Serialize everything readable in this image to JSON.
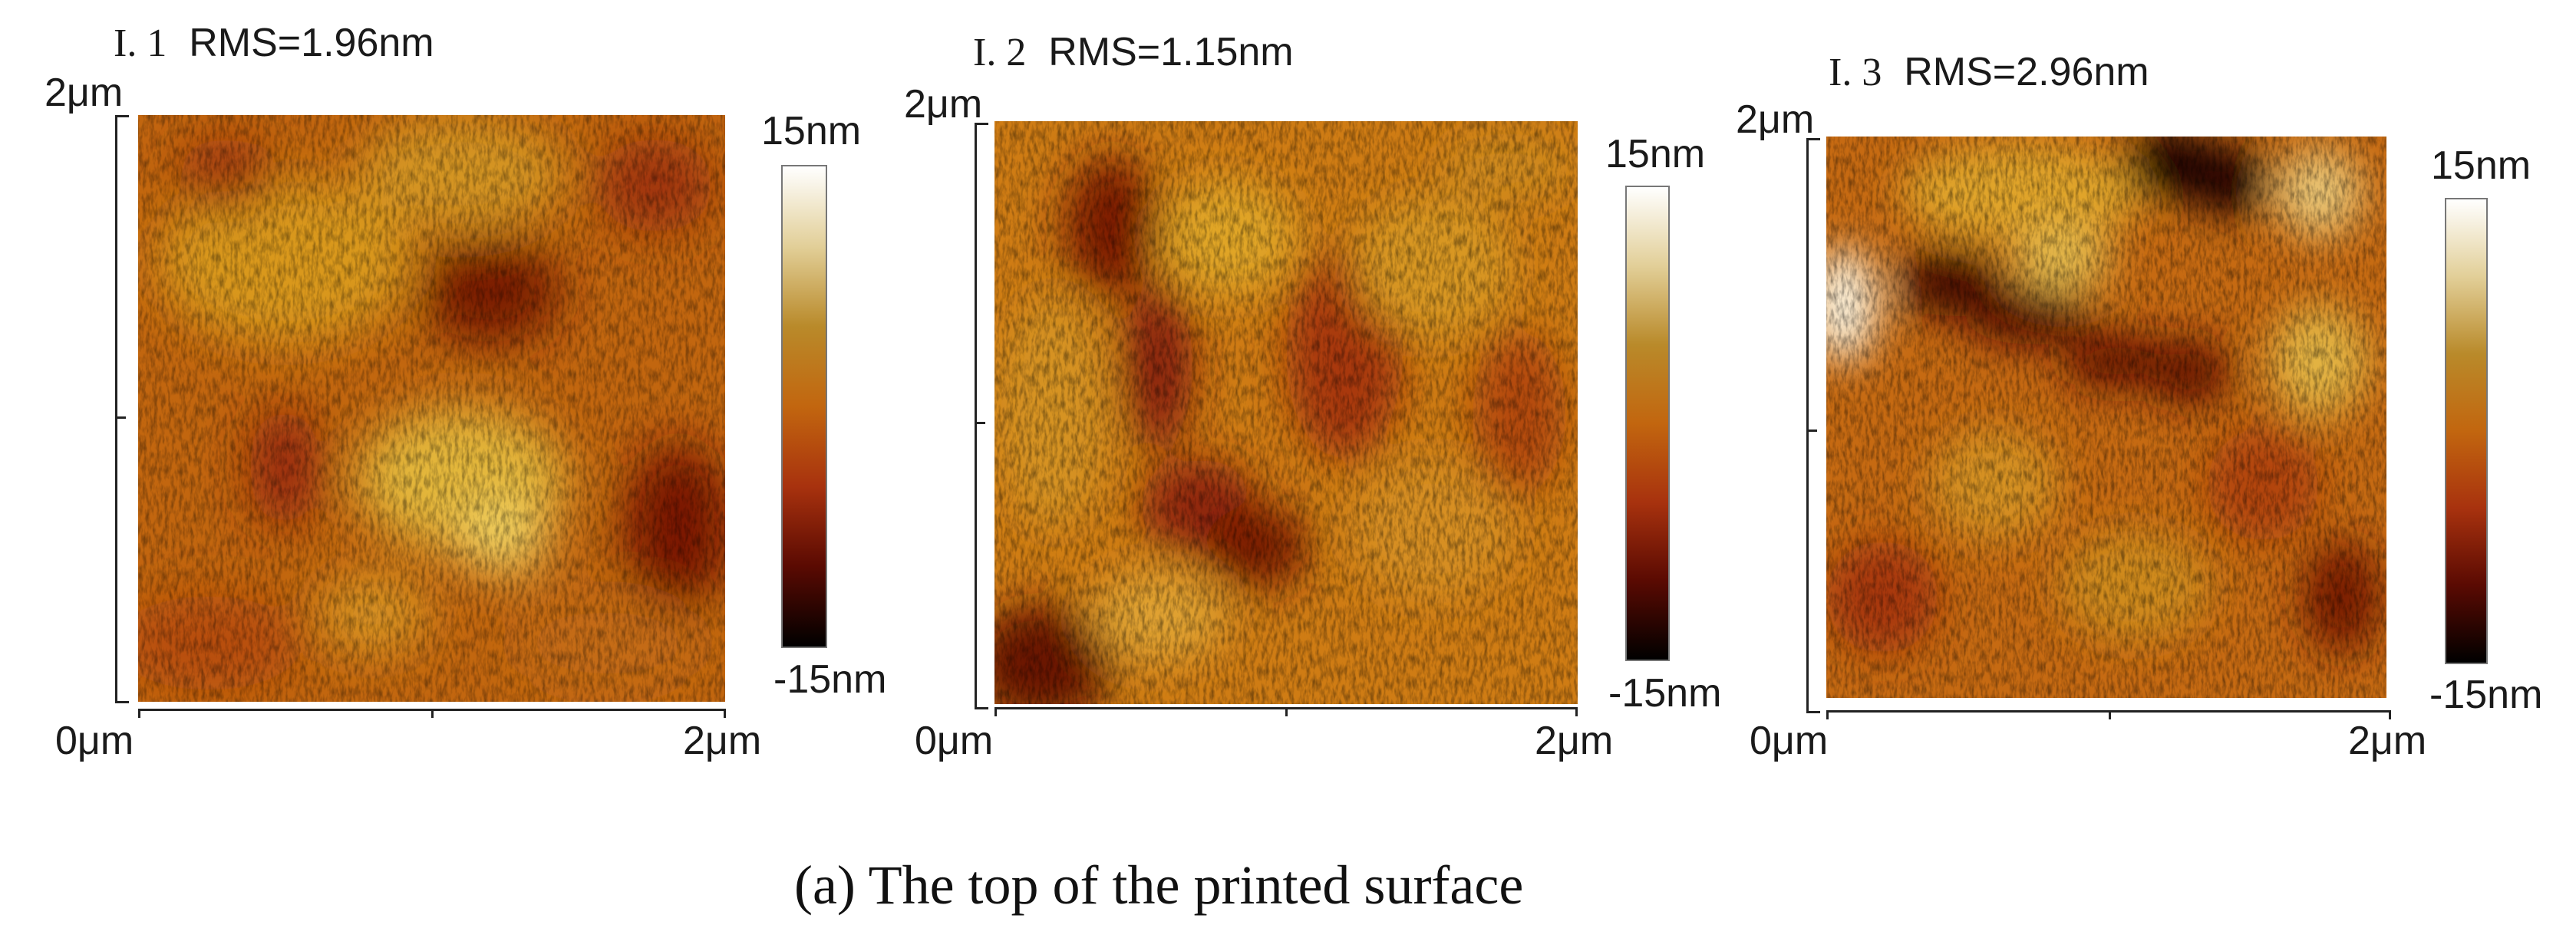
{
  "panels": [
    {
      "index": "I. 1",
      "rms": "RMS=1.96nm",
      "y_max_label": "2μm",
      "x_min_label": "0μm",
      "x_max_label": "2μm",
      "colorbar_max": "15nm",
      "colorbar_min": "-15nm"
    },
    {
      "index": "I. 2",
      "rms": "RMS=1.15nm",
      "y_max_label": "2μm",
      "x_min_label": "0μm",
      "x_max_label": "2μm",
      "colorbar_max": "15nm",
      "colorbar_min": "-15nm"
    },
    {
      "index": "I. 3",
      "rms": "RMS=2.96nm",
      "y_max_label": "2μm",
      "x_min_label": "0μm",
      "x_max_label": "2μm",
      "colorbar_max": "15nm",
      "colorbar_min": "-15nm"
    }
  ],
  "colormap": [
    "#000000",
    "#5a0a02",
    "#a8320e",
    "#c2660f",
    "#b98a2a",
    "#e2cf98",
    "#ffffff"
  ],
  "caption": "(a) The top of the printed surface"
}
